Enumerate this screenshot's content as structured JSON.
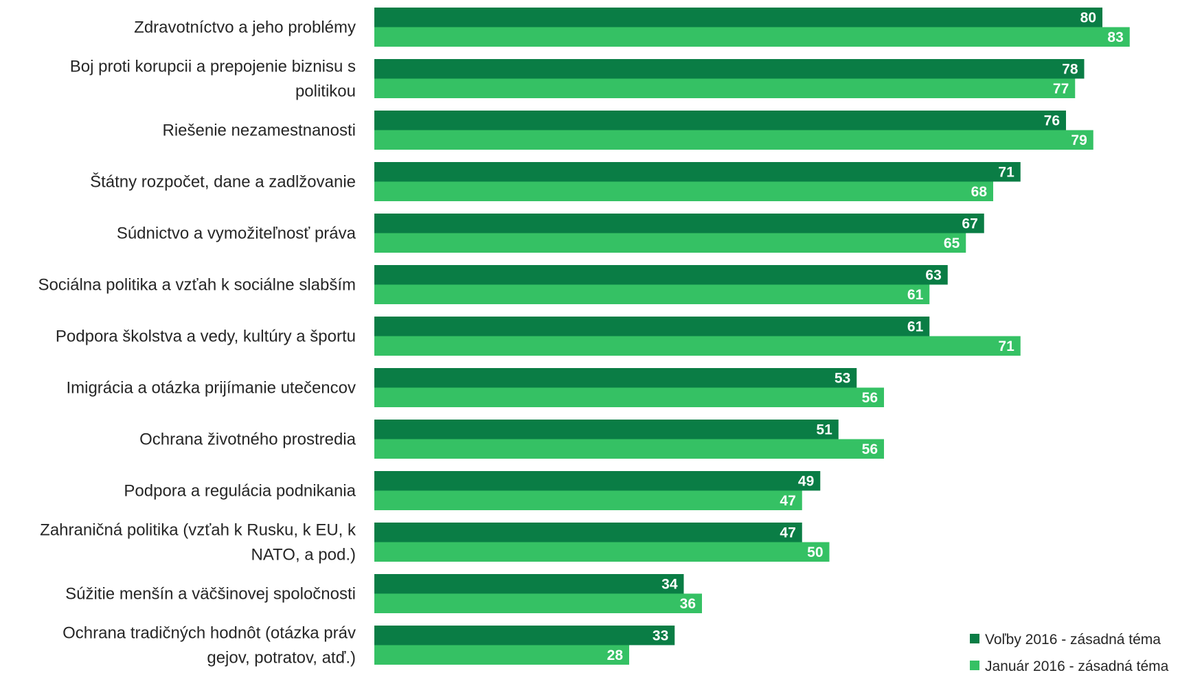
{
  "chart_data": {
    "type": "bar",
    "orientation": "horizontal",
    "categories": [
      [
        "Zdravotníctvo a jeho problémy"
      ],
      [
        "Boj proti korupcii a prepojenie biznisu s",
        "politikou"
      ],
      [
        "Riešenie nezamestnanosti"
      ],
      [
        "Štátny rozpočet, dane a zadlžovanie"
      ],
      [
        "Súdnictvo a vymožiteľnosť práva"
      ],
      [
        "Sociálna politika a vzťah k sociálne slabším"
      ],
      [
        "Podpora školstva a vedy, kultúry a športu"
      ],
      [
        "Imigrácia a otázka prijímanie utečencov"
      ],
      [
        "Ochrana životného prostredia"
      ],
      [
        "Podpora a regulácia podnikania"
      ],
      [
        "Zahraničná politika (vzťah k Rusku, k EU, k",
        "NATO, a pod.)"
      ],
      [
        "Súžitie menšín a väčšinovej spoločnosti"
      ],
      [
        "Ochrana tradičných hodnôt (otázka práv",
        "gejov, potratov, atď.)"
      ]
    ],
    "series": [
      {
        "name": "Voľby 2016 - zásadná téma",
        "color": "#0a7d45",
        "values": [
          80,
          78,
          76,
          71,
          67,
          63,
          61,
          53,
          51,
          49,
          47,
          34,
          33
        ]
      },
      {
        "name": "Január 2016 - zásadná téma",
        "color": "#35c164",
        "values": [
          83,
          77,
          79,
          68,
          65,
          61,
          71,
          56,
          56,
          47,
          50,
          36,
          28
        ]
      }
    ],
    "xlim": [
      0,
      100
    ],
    "grid": false,
    "data_labels": true,
    "legend_position": "bottom-right"
  }
}
